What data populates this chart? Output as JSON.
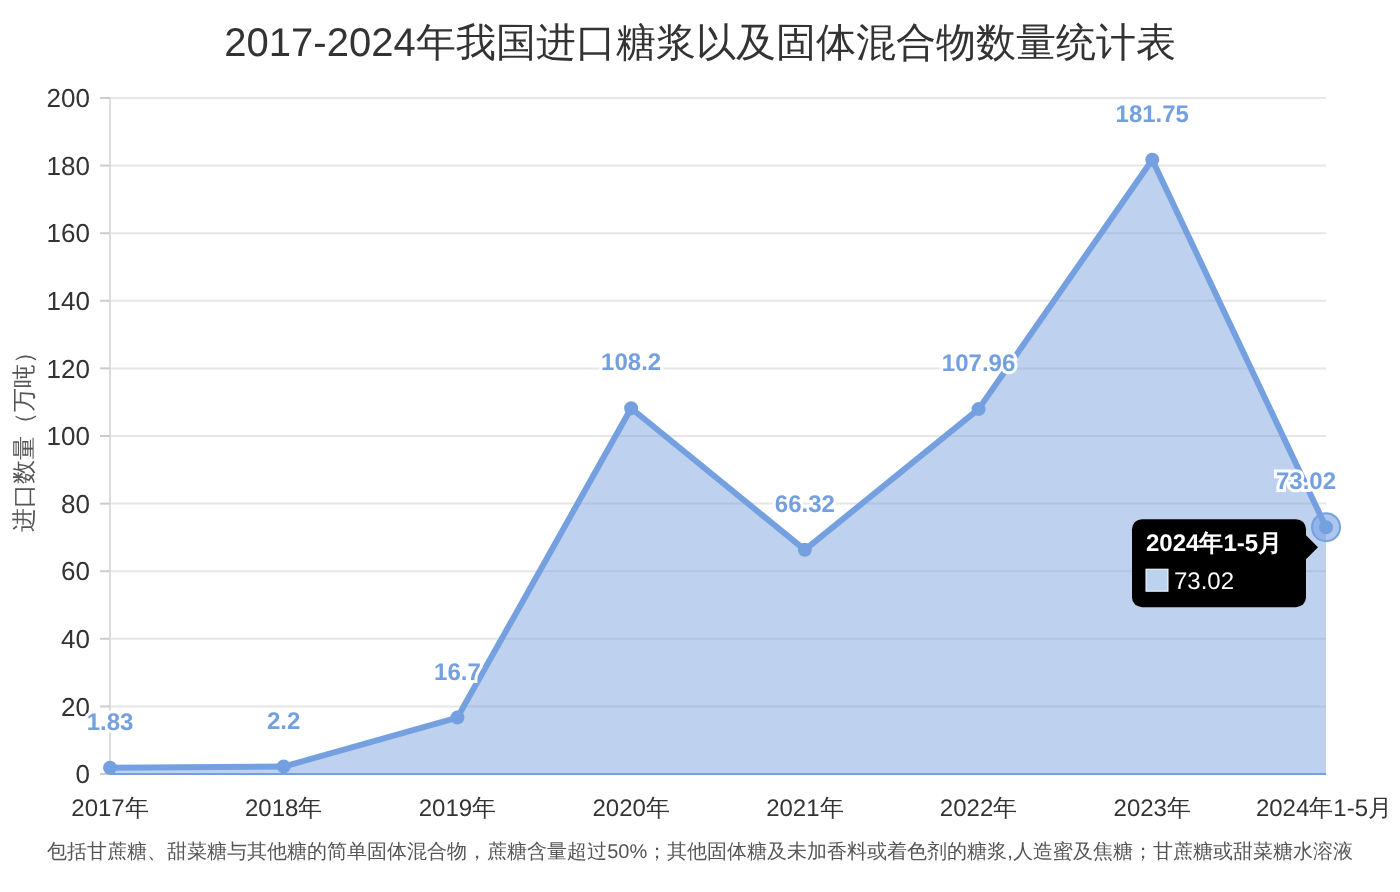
{
  "chart_data": {
    "type": "area",
    "title": "2017-2024年我国进口糖浆以及固体混合物数量统计表",
    "ylabel": "进口数量（万吨）",
    "categories": [
      "2017年",
      "2018年",
      "2019年",
      "2020年",
      "2021年",
      "2022年",
      "2023年",
      "2024年1-5月"
    ],
    "series": [
      {
        "color": "#74a0e0",
        "values": [
          1.83,
          2.2,
          16.7,
          108.2,
          66.32,
          107.96,
          181.75,
          73.02
        ]
      }
    ],
    "ylim": [
      0,
      200
    ],
    "yticks": [
      0,
      20,
      40,
      60,
      80,
      100,
      120,
      140,
      160,
      180,
      200
    ],
    "grid": "y",
    "marker": "circle",
    "data_labels": true,
    "annotations": [
      {
        "text": "2024年1-5月",
        "x": "2024年1-5月",
        "y": 73.02
      },
      "73.02",
      "包括甘蔗糖、甜菜糖与其他糖的简单固体混合物，蔗糖含量超过50%；其他固体糖及未加香料或着色剂的糖浆,人造蜜及焦糖；甘蔗糖或甜菜糖水溶液"
    ]
  }
}
